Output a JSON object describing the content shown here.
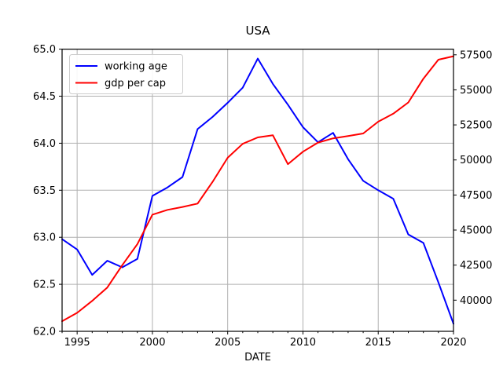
{
  "figure": {
    "title": "USA",
    "xlabel": "DATE",
    "background_color": "#ffffff",
    "grid_color": "#b0b0b0",
    "spine_color": "#000000",
    "legend_border_color": "#cccccc"
  },
  "legend": {
    "position": "upper left",
    "entries": [
      {
        "label": "working age",
        "color": "#0000ff"
      },
      {
        "label": "gdp per cap",
        "color": "#ff0000"
      }
    ]
  },
  "chart_data": {
    "type": "line",
    "title": "USA",
    "xlabel": "DATE",
    "grid": true,
    "legend_position": "upper left",
    "x": [
      1994,
      1995,
      1996,
      1997,
      1998,
      1999,
      2000,
      2001,
      2002,
      2003,
      2004,
      2005,
      2006,
      2007,
      2008,
      2009,
      2010,
      2011,
      2012,
      2013,
      2014,
      2015,
      2016,
      2017,
      2018,
      2019,
      2020
    ],
    "xlim": [
      1994,
      2020
    ],
    "x_tick_labels": [
      "1995",
      "2000",
      "2005",
      "2010",
      "2015",
      "2020"
    ],
    "x_ticks": [
      1995,
      2000,
      2005,
      2010,
      2015,
      2020
    ],
    "x_minor_ticks_every": 1,
    "left_axis": {
      "lim": [
        62.0,
        65.0
      ],
      "ticks": [
        62.0,
        62.5,
        63.0,
        63.5,
        64.0,
        64.5,
        65.0
      ],
      "tick_labels": [
        "62.0",
        "62.5",
        "63.0",
        "63.5",
        "64.0",
        "64.5",
        "65.0"
      ]
    },
    "right_axis": {
      "lim": [
        37777,
        57903
      ],
      "ticks": [
        40000,
        42500,
        45000,
        47500,
        50000,
        52500,
        55000,
        57500
      ],
      "tick_labels": [
        "40000",
        "42500",
        "45000",
        "47500",
        "50000",
        "52500",
        "55000",
        "57500"
      ]
    },
    "series": [
      {
        "name": "working age",
        "axis": "left",
        "color": "#0000ff",
        "values": [
          62.98,
          62.87,
          62.6,
          62.75,
          62.68,
          62.77,
          63.44,
          63.53,
          63.64,
          64.15,
          64.28,
          64.43,
          64.59,
          64.9,
          64.63,
          64.41,
          64.17,
          64.01,
          64.11,
          63.83,
          63.6,
          63.5,
          63.41,
          63.03,
          62.94,
          62.52,
          62.08
        ]
      },
      {
        "name": "gdp per cap",
        "axis": "right",
        "color": "#ff0000",
        "values": [
          38500,
          39100,
          39950,
          40900,
          42500,
          44000,
          46100,
          46440,
          46650,
          46890,
          48440,
          50160,
          51150,
          51610,
          51760,
          49700,
          50590,
          51240,
          51540,
          51710,
          51890,
          52730,
          53300,
          54100,
          55800,
          57150,
          57400
        ]
      }
    ]
  }
}
